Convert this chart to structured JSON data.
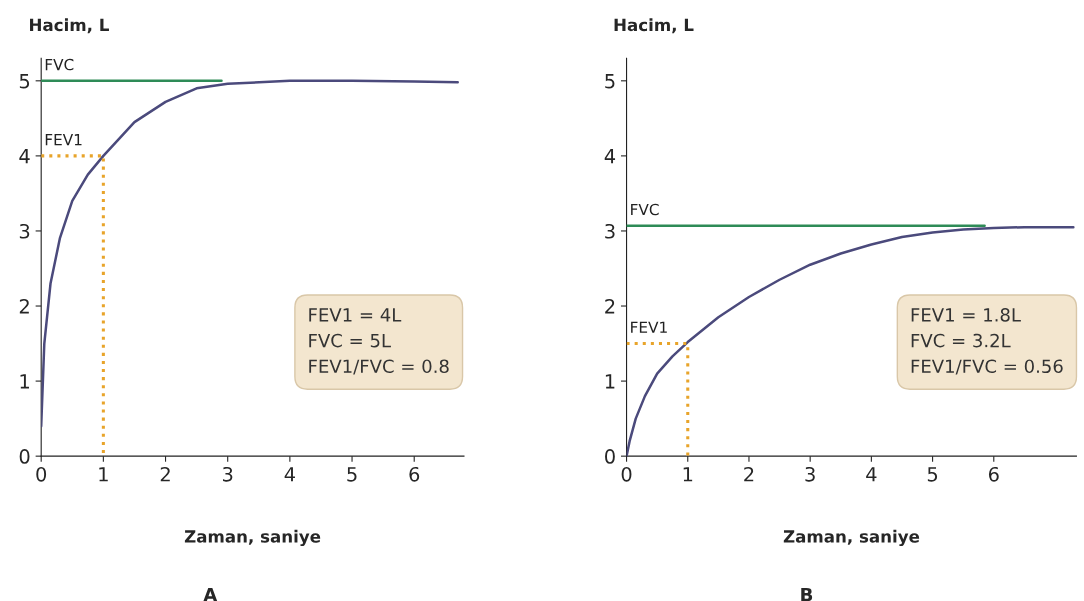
{
  "chart_data": [
    {
      "type": "line",
      "xlabel": "Zaman, saniye",
      "ylabel": "Hacim, L",
      "xlim": [
        0,
        6.8
      ],
      "ylim": [
        0,
        5.3
      ],
      "xticks": [
        0,
        1,
        2,
        3,
        4,
        5,
        6
      ],
      "yticks": [
        0,
        1,
        2,
        3,
        4,
        5
      ],
      "grid": false,
      "legend": false,
      "marker": "none",
      "annotations": [
        "FEV1 = 4L",
        "FVC = 5L",
        "FEV1/FVC = 0.8",
        "A"
      ],
      "series": [
        {
          "x": [
            0,
            0.05,
            0.15,
            0.3,
            0.5,
            0.75,
            1,
            1.5,
            2,
            2.5,
            3,
            4,
            5,
            6,
            6.7
          ],
          "values": [
            0.4,
            1.5,
            2.3,
            2.9,
            3.4,
            3.75,
            4.0,
            4.45,
            4.72,
            4.9,
            4.96,
            5.0,
            5.0,
            4.99,
            4.98
          ],
          "color": "#4b4a7c",
          "line_style": "solid"
        },
        {
          "name": "FVC",
          "x": [
            0,
            2.9
          ],
          "values": [
            5,
            5
          ],
          "color": "#2e8b57",
          "line_style": "solid"
        },
        {
          "name": "FEV1",
          "x": [
            0,
            1,
            1
          ],
          "values": [
            4,
            4,
            0
          ],
          "color": "#e8a42a",
          "line_style": "dotted"
        }
      ]
    },
    {
      "type": "line",
      "xlabel": "Zaman, saniye",
      "ylabel": "Hacim, L",
      "xlim": [
        0,
        7.35
      ],
      "ylim": [
        0,
        5.3
      ],
      "xticks": [
        0,
        1,
        2,
        3,
        4,
        5,
        6
      ],
      "yticks": [
        0,
        1,
        2,
        3,
        4,
        5
      ],
      "grid": false,
      "legend": false,
      "marker": "none",
      "annotations": [
        "FEV1 = 1.8L",
        "FVC = 3.2L",
        "FEV1/FVC = 0.56",
        "B"
      ],
      "series": [
        {
          "x": [
            0,
            0.05,
            0.15,
            0.3,
            0.5,
            0.75,
            1,
            1.5,
            2,
            2.5,
            3,
            3.5,
            4,
            4.5,
            5,
            5.5,
            6,
            6.5,
            7.3
          ],
          "values": [
            0,
            0.2,
            0.5,
            0.8,
            1.1,
            1.33,
            1.52,
            1.85,
            2.12,
            2.35,
            2.55,
            2.7,
            2.82,
            2.92,
            2.98,
            3.02,
            3.04,
            3.05,
            3.05
          ],
          "color": "#4b4a7c",
          "line_style": "solid"
        },
        {
          "name": "FVC",
          "x": [
            0,
            5.85
          ],
          "values": [
            3.07,
            3.07
          ],
          "color": "#2e8b57",
          "line_style": "solid"
        },
        {
          "name": "FEV1",
          "x": [
            0,
            1,
            1
          ],
          "values": [
            1.5,
            1.5,
            0
          ],
          "color": "#e8a42a",
          "line_style": "dotted"
        }
      ]
    }
  ]
}
